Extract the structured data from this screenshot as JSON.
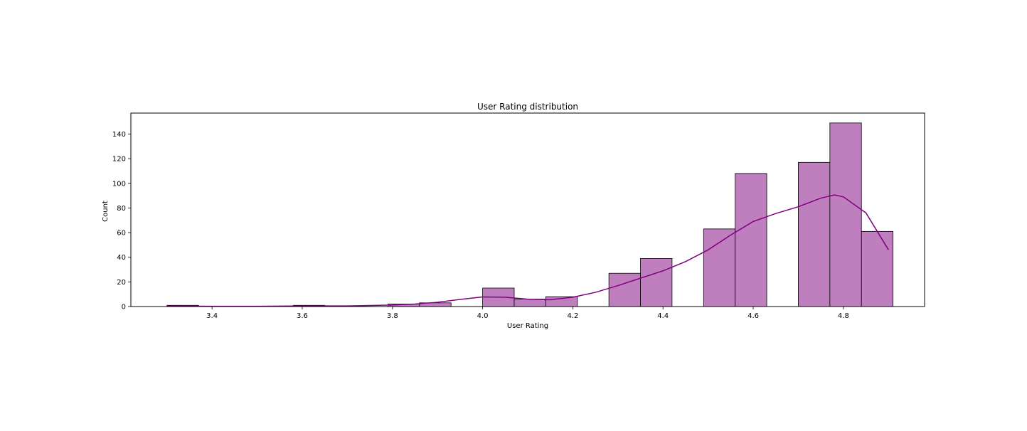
{
  "chart_data": {
    "type": "bar",
    "title": "User Rating distribution",
    "xlabel": "User Rating",
    "ylabel": "Count",
    "xlim": [
      3.22,
      4.98
    ],
    "ylim": [
      0,
      157
    ],
    "xticks": [
      "3.4",
      "3.6",
      "3.8",
      "4.0",
      "4.2",
      "4.4",
      "4.6",
      "4.8"
    ],
    "yticks": [
      "0",
      "20",
      "40",
      "60",
      "80",
      "100",
      "120",
      "140"
    ],
    "bar_color": "#BF7FBF",
    "edge_color": "#000000",
    "kde_color": "#800080",
    "grid": false,
    "legend": "none",
    "bins": [
      {
        "x0": 3.3,
        "x1": 3.37,
        "count": 1
      },
      {
        "x0": 3.37,
        "x1": 3.44,
        "count": 0
      },
      {
        "x0": 3.44,
        "x1": 3.51,
        "count": 0
      },
      {
        "x0": 3.51,
        "x1": 3.58,
        "count": 0
      },
      {
        "x0": 3.58,
        "x1": 3.65,
        "count": 1
      },
      {
        "x0": 3.65,
        "x1": 3.72,
        "count": 0
      },
      {
        "x0": 3.72,
        "x1": 3.79,
        "count": 0
      },
      {
        "x0": 3.79,
        "x1": 3.86,
        "count": 2
      },
      {
        "x0": 3.86,
        "x1": 3.93,
        "count": 3
      },
      {
        "x0": 3.93,
        "x1": 4.0,
        "count": 0
      },
      {
        "x0": 4.0,
        "x1": 4.07,
        "count": 15
      },
      {
        "x0": 4.07,
        "x1": 4.14,
        "count": 6
      },
      {
        "x0": 4.14,
        "x1": 4.21,
        "count": 8
      },
      {
        "x0": 4.21,
        "x1": 4.28,
        "count": 0
      },
      {
        "x0": 4.28,
        "x1": 4.35,
        "count": 27
      },
      {
        "x0": 4.35,
        "x1": 4.42,
        "count": 39
      },
      {
        "x0": 4.42,
        "x1": 4.49,
        "count": 0
      },
      {
        "x0": 4.49,
        "x1": 4.56,
        "count": 63
      },
      {
        "x0": 4.56,
        "x1": 4.63,
        "count": 108
      },
      {
        "x0": 4.63,
        "x1": 4.7,
        "count": 0
      },
      {
        "x0": 4.7,
        "x1": 4.77,
        "count": 117
      },
      {
        "x0": 4.77,
        "x1": 4.84,
        "count": 149
      },
      {
        "x0": 4.84,
        "x1": 4.91,
        "count": 61
      }
    ],
    "kde": [
      [
        3.3,
        0.4
      ],
      [
        3.4,
        0.2
      ],
      [
        3.5,
        0.2
      ],
      [
        3.6,
        0.5
      ],
      [
        3.7,
        0.5
      ],
      [
        3.8,
        1.2
      ],
      [
        3.85,
        2.0
      ],
      [
        3.9,
        3.5
      ],
      [
        3.95,
        5.8
      ],
      [
        4.0,
        7.8
      ],
      [
        4.05,
        7.6
      ],
      [
        4.1,
        6.0
      ],
      [
        4.15,
        5.5
      ],
      [
        4.2,
        7.6
      ],
      [
        4.25,
        11.5
      ],
      [
        4.3,
        17.0
      ],
      [
        4.35,
        23.0
      ],
      [
        4.4,
        29.0
      ],
      [
        4.45,
        36.5
      ],
      [
        4.5,
        46.0
      ],
      [
        4.55,
        58.0
      ],
      [
        4.6,
        69.0
      ],
      [
        4.65,
        75.5
      ],
      [
        4.7,
        81.0
      ],
      [
        4.75,
        88.0
      ],
      [
        4.78,
        90.6
      ],
      [
        4.8,
        89.0
      ],
      [
        4.85,
        76.0
      ],
      [
        4.9,
        46.0
      ]
    ]
  }
}
